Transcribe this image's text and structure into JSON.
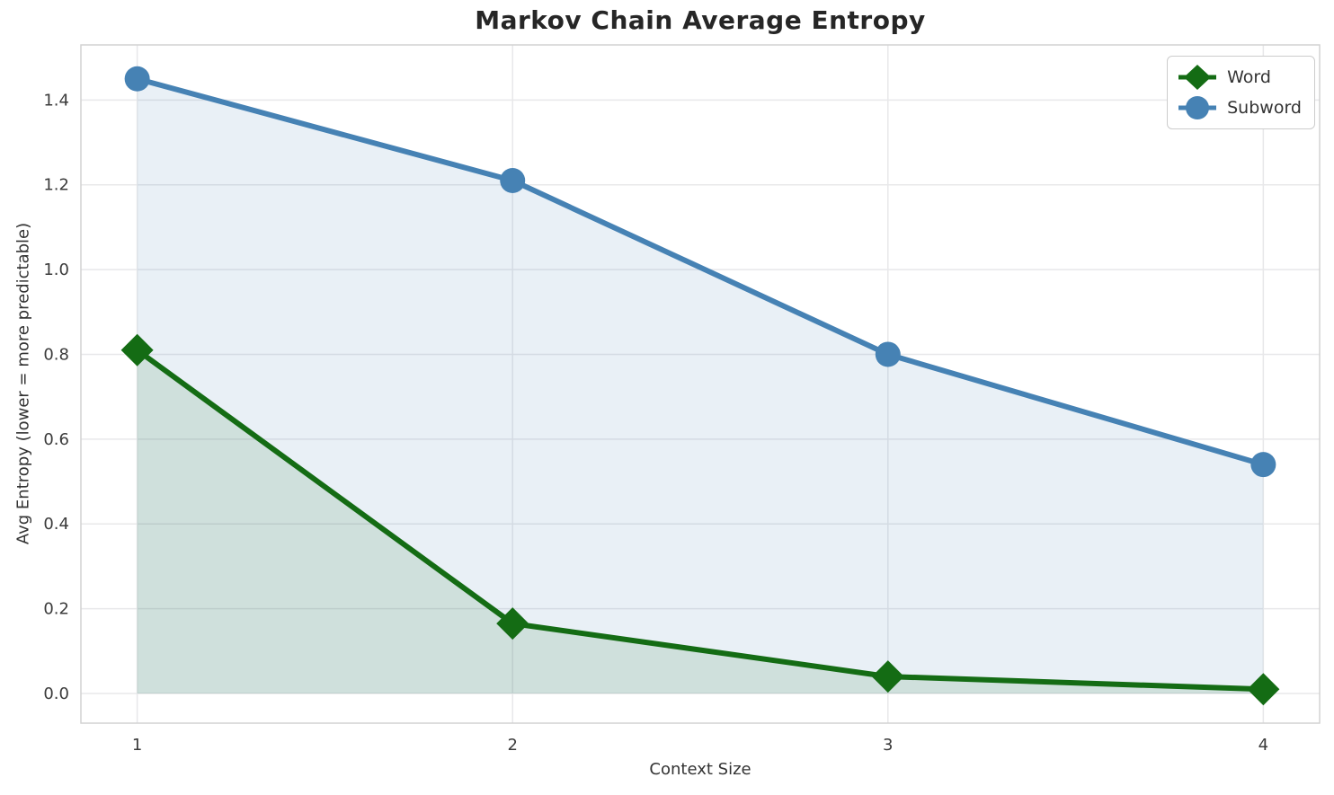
{
  "chart_data": {
    "type": "line",
    "title": "Markov Chain Average Entropy",
    "xlabel": "Context Size",
    "ylabel": "Avg Entropy (lower = more predictable)",
    "x": [
      1,
      2,
      3,
      4
    ],
    "series": [
      {
        "name": "Word",
        "values": [
          0.81,
          0.165,
          0.04,
          0.01
        ],
        "color": "#146C14",
        "marker": "diamond",
        "area_fill": true
      },
      {
        "name": "Subword",
        "values": [
          1.45,
          1.21,
          0.8,
          0.54
        ],
        "color": "#4682B4",
        "marker": "circle",
        "area_fill": true
      }
    ],
    "xticks": [
      1,
      2,
      3,
      4
    ],
    "yticks": [
      0.0,
      0.2,
      0.4,
      0.6,
      0.8,
      1.0,
      1.2,
      1.4
    ],
    "xlim": [
      0.85,
      4.15
    ],
    "ylim": [
      -0.07,
      1.53
    ],
    "grid": true,
    "legend_position": "upper right",
    "fill_alpha": 0.12,
    "line_width": 6,
    "colors": {
      "background": "#ffffff",
      "grid": "#e8e8ea",
      "spine": "#d2d2d2",
      "tick_text": "#3b3b3b",
      "title_text": "#262626"
    }
  }
}
